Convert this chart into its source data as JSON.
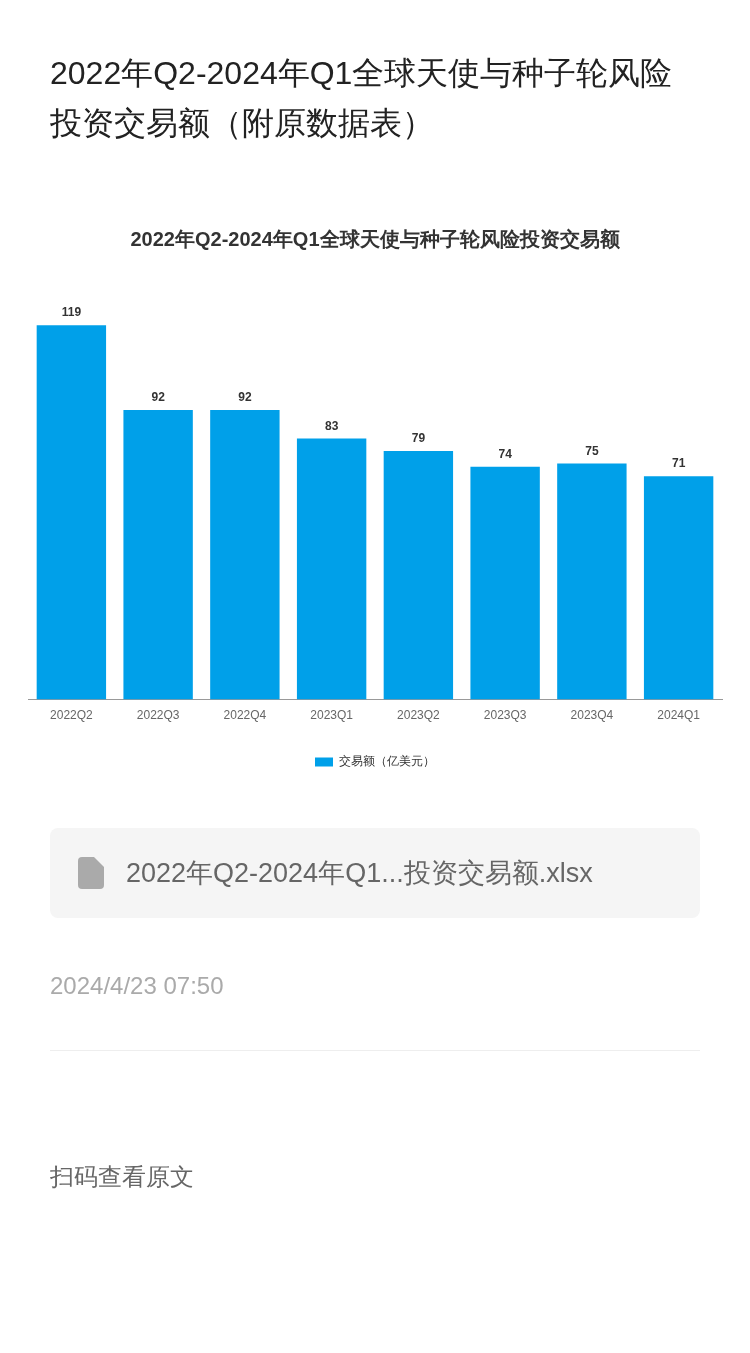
{
  "chart_data": {
    "type": "bar",
    "title": "2022年Q2-2024年Q1全球天使与种子轮风险投资交易额（附原数据表）",
    "subtitle": "2022年Q2-2024年Q1全球天使与种子轮风险投资交易额",
    "categories": [
      "2022Q2",
      "2022Q3",
      "2022Q4",
      "2023Q1",
      "2023Q2",
      "2023Q3",
      "2023Q4",
      "2024Q1"
    ],
    "series": [
      {
        "name": "交易额（亿美元）",
        "color": "#00a0e9",
        "values": [
          119,
          92,
          92,
          83,
          79,
          74,
          75,
          71
        ]
      }
    ],
    "data_labels": true,
    "grid": false,
    "legend": "bottom",
    "tick_labels": "x",
    "annotations": [
      "2022年Q2-2024年Q1...投资交易额.xlsx",
      "2024/4/23 07:50",
      "扫码查看原文"
    ]
  }
}
